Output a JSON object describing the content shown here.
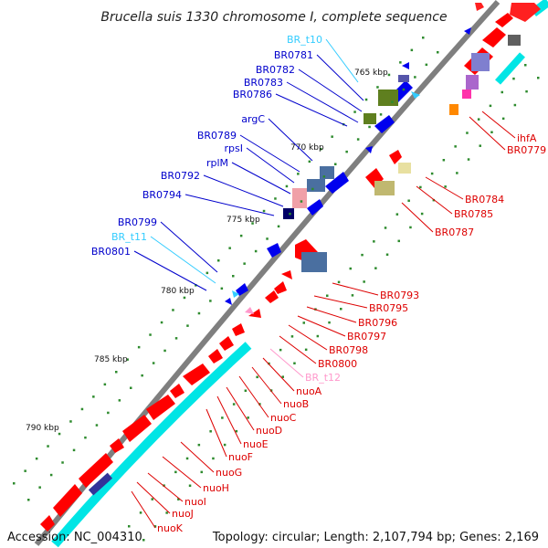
{
  "title": "Brucella suis 1330 chromosome I, complete sequence",
  "accession": "Accession: NC_004310",
  "topology": "Topology: circular; Length: 2,107,794 bp; Genes: 2,169",
  "colors": {
    "backbone": "#7f7f7f",
    "forward_gene": "#ff0000",
    "reverse_gene": "#0000ff",
    "rna": "#33ccff",
    "rna_forward": "#ff99cc",
    "cds_cyan": "#00ffff",
    "tick": "#2e8b2e"
  },
  "kbp_labels": [
    "765 kbp",
    "770 kbp",
    "775 kbp",
    "780 kbp",
    "785 kbp",
    "790 kbp"
  ],
  "left_labels": [
    {
      "text": "BR_t10",
      "color": "#33ccff"
    },
    {
      "text": "BR0781",
      "color": "#0000cc"
    },
    {
      "text": "BR0782",
      "color": "#0000cc"
    },
    {
      "text": "BR0783",
      "color": "#0000cc"
    },
    {
      "text": "BR0786",
      "color": "#0000cc"
    },
    {
      "text": "argC",
      "color": "#0000cc"
    },
    {
      "text": "BR0789",
      "color": "#0000cc"
    },
    {
      "text": "rpsI",
      "color": "#0000cc"
    },
    {
      "text": "rplM",
      "color": "#0000cc"
    },
    {
      "text": "BR0792",
      "color": "#0000cc"
    },
    {
      "text": "BR0794",
      "color": "#0000cc"
    },
    {
      "text": "BR0799",
      "color": "#0000cc"
    },
    {
      "text": "BR_t11",
      "color": "#33ccff"
    },
    {
      "text": "BR0801",
      "color": "#0000cc"
    }
  ],
  "right_labels": [
    {
      "text": "ihfA",
      "color": "#dd0000"
    },
    {
      "text": "BR0779",
      "color": "#dd0000"
    },
    {
      "text": "BR0784",
      "color": "#dd0000"
    },
    {
      "text": "BR0785",
      "color": "#dd0000"
    },
    {
      "text": "BR0787",
      "color": "#dd0000"
    },
    {
      "text": "BR0793",
      "color": "#dd0000"
    },
    {
      "text": "BR0795",
      "color": "#dd0000"
    },
    {
      "text": "BR0796",
      "color": "#dd0000"
    },
    {
      "text": "BR0797",
      "color": "#dd0000"
    },
    {
      "text": "BR0798",
      "color": "#dd0000"
    },
    {
      "text": "BR0800",
      "color": "#dd0000"
    },
    {
      "text": "BR_t12",
      "color": "#ff99cc"
    },
    {
      "text": "nuoA",
      "color": "#dd0000"
    },
    {
      "text": "nuoB",
      "color": "#dd0000"
    },
    {
      "text": "nuoC",
      "color": "#dd0000"
    },
    {
      "text": "nuoD",
      "color": "#dd0000"
    },
    {
      "text": "nuoE",
      "color": "#dd0000"
    },
    {
      "text": "nuoF",
      "color": "#dd0000"
    },
    {
      "text": "nuoG",
      "color": "#dd0000"
    },
    {
      "text": "nuoH",
      "color": "#dd0000"
    },
    {
      "text": "nuoI",
      "color": "#dd0000"
    },
    {
      "text": "nuoJ",
      "color": "#dd0000"
    },
    {
      "text": "nuoK",
      "color": "#dd0000"
    }
  ]
}
